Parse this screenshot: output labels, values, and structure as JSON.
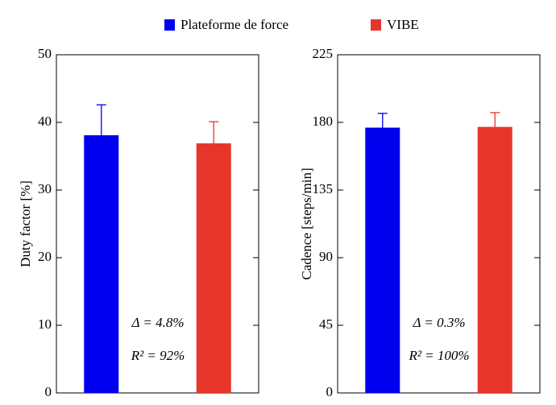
{
  "chart_data": [
    {
      "type": "bar",
      "ylabel": "Duty factor [%]",
      "ylim": [
        0,
        50
      ],
      "yticks": [
        0,
        10,
        20,
        30,
        40,
        50
      ],
      "series": [
        {
          "name": "Plateforme de force",
          "color": "#0000ee",
          "values": [
            38.1
          ],
          "errors": [
            4.5
          ]
        },
        {
          "name": "VIBE",
          "color": "#e8352a",
          "values": [
            36.9
          ],
          "errors": [
            3.2
          ]
        }
      ],
      "annotations": [
        "Δ = 4.8%",
        "R² = 92%"
      ]
    },
    {
      "type": "bar",
      "ylabel": "Cadence [steps/min]",
      "ylim": [
        0,
        225
      ],
      "yticks": [
        0,
        45,
        90,
        135,
        180,
        225
      ],
      "series": [
        {
          "color": "#0000ee",
          "values": [
            176.5
          ],
          "errors": [
            9.5
          ]
        },
        {
          "color": "#e8352a",
          "values": [
            177
          ],
          "errors": [
            9.5
          ]
        }
      ],
      "annotations": [
        "Δ = 0.3%",
        "R² = 100%"
      ]
    }
  ]
}
